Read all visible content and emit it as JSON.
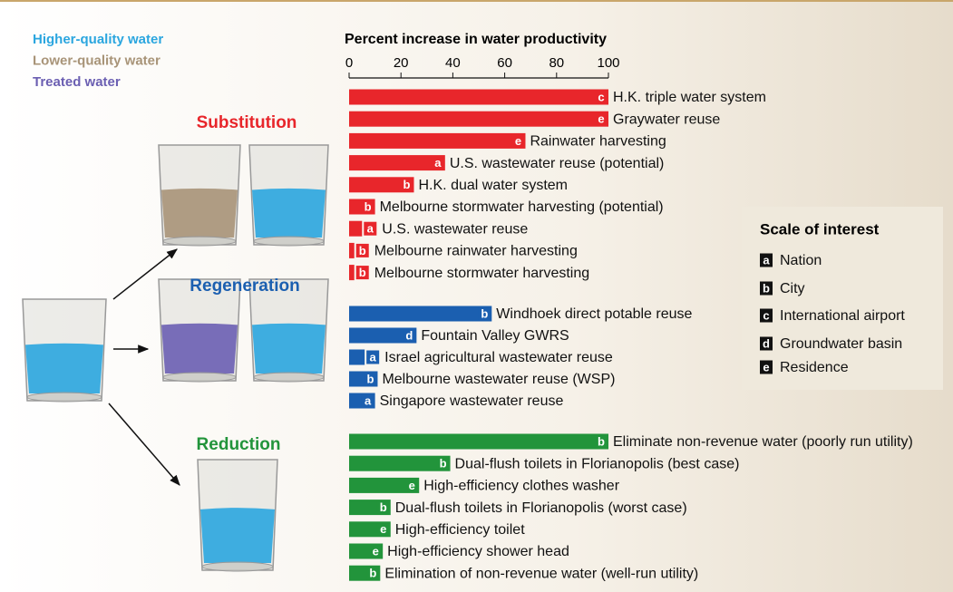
{
  "chart_data": {
    "type": "bar",
    "title": "Percent increase in water productivity",
    "xlim": [
      0,
      100
    ],
    "xticks": [
      0,
      20,
      40,
      60,
      80,
      100
    ],
    "water_types": [
      {
        "name": "Higher-quality water",
        "color": "#2ba6df"
      },
      {
        "name": "Lower-quality water",
        "color": "#a89478"
      },
      {
        "name": "Treated water",
        "color": "#6b5fb2"
      }
    ],
    "groups": [
      {
        "name": "Substitution",
        "color": "#e8262b",
        "categories": [
          "H.K. triple water system",
          "Graywater reuse",
          "Rainwater harvesting",
          "U.S. wastewater reuse (potential)",
          "H.K. dual water system",
          "Melbourne stormwater harvesting (potential)",
          "U.S. wastewater reuse",
          "Melbourne rainwater harvesting",
          "Melbourne stormwater harvesting"
        ],
        "values": [
          100,
          100,
          68,
          37,
          25,
          10,
          5,
          2,
          2
        ],
        "scales": [
          "c",
          "e",
          "e",
          "a",
          "b",
          "b",
          "a",
          "b",
          "b"
        ]
      },
      {
        "name": "Regeneration",
        "color": "#1b5fb0",
        "categories": [
          "Windhoek direct potable reuse",
          "Fountain Valley GWRS",
          "Israel agricultural wastewater reuse",
          "Melbourne wastewater reuse (WSP)",
          "Singapore wastewater reuse"
        ],
        "values": [
          55,
          26,
          6,
          11,
          10
        ],
        "scales": [
          "b",
          "d",
          "a",
          "b",
          "a"
        ]
      },
      {
        "name": "Reduction",
        "color": "#22943b",
        "categories": [
          "Eliminate non-revenue water (poorly run utility)",
          "Dual-flush toilets in Florianopolis (best case)",
          "High-efficiency clothes washer",
          "Dual-flush toilets in Florianopolis (worst case)",
          "High-efficiency toilet",
          "High-efficiency shower head",
          "Elimination of non-revenue water (well-run utility)"
        ],
        "values": [
          100,
          39,
          27,
          16,
          16,
          13,
          12
        ],
        "scales": [
          "b",
          "b",
          "e",
          "b",
          "e",
          "e",
          "b"
        ]
      }
    ],
    "scale_legend": {
      "title": "Scale of interest",
      "items": [
        {
          "key": "a",
          "label": "Nation"
        },
        {
          "key": "b",
          "label": "City"
        },
        {
          "key": "c",
          "label": "International airport"
        },
        {
          "key": "d",
          "label": "Groundwater basin"
        },
        {
          "key": "e",
          "label": "Residence"
        }
      ]
    }
  }
}
